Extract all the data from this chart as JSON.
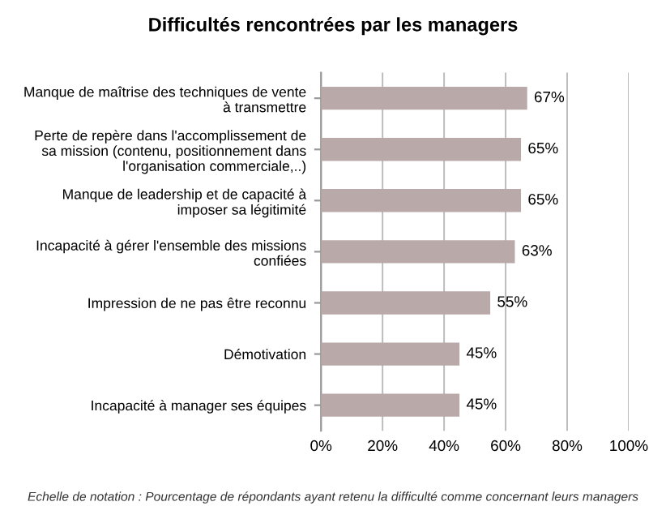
{
  "chart_data": {
    "type": "bar",
    "orientation": "horizontal",
    "title": "Difficultés rencontrées par les managers",
    "categories": [
      "Manque de maîtrise des techniques de vente\nà transmettre",
      "Perte de repère dans l'accomplissement de\nsa mission (contenu, positionnement dans\nl'organisation commerciale,..)",
      "Manque de leadership et de capacité à\nimposer sa légitimité",
      "Incapacité à gérer l'ensemble des missions\nconfiées",
      "Impression de ne pas être reconnu",
      "Démotivation",
      "Incapacité à manager ses équipes"
    ],
    "values": [
      67,
      65,
      65,
      63,
      55,
      45,
      45
    ],
    "value_labels": [
      "67%",
      "65%",
      "65%",
      "63%",
      "55%",
      "45%",
      "45%"
    ],
    "color": "#b9a9a9",
    "xlim": [
      0,
      100
    ],
    "xticks": [
      {
        "value": 0,
        "label": "0%"
      },
      {
        "value": 20,
        "label": "20%"
      },
      {
        "value": 40,
        "label": "40%"
      },
      {
        "value": 60,
        "label": "60%"
      },
      {
        "value": 80,
        "label": "80%"
      },
      {
        "value": 100,
        "label": "100%"
      }
    ],
    "grid": "x",
    "annotations": [
      "Echelle de notation : Pourcentage de répondants ayant retenu la difficulté comme concernant leurs managers"
    ]
  }
}
